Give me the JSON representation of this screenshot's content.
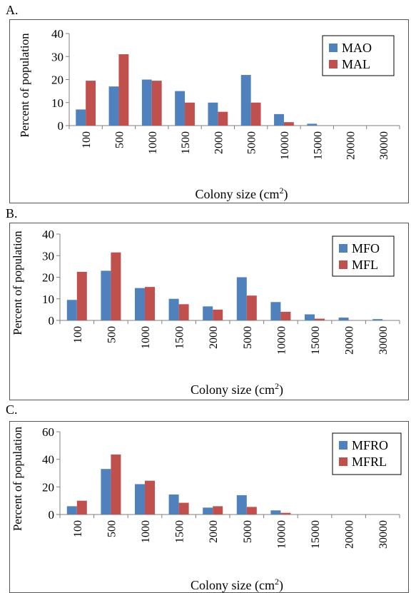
{
  "colors": {
    "original": "#4f81bd",
    "lab": "#c0504d",
    "axis": "#7f7f7f"
  },
  "panels": [
    {
      "letter": "A."
    },
    {
      "letter": "B."
    },
    {
      "letter": "C."
    }
  ],
  "chart_data": [
    {
      "type": "bar",
      "categories": [
        "100",
        "500",
        "1000",
        "1500",
        "2000",
        "5000",
        "10000",
        "15000",
        "20000",
        "30000"
      ],
      "ylabel": "Percent of population",
      "xlabel": "Colony size (cm2)",
      "ylim": [
        0,
        40
      ],
      "yticks": [
        0,
        10,
        20,
        30,
        40
      ],
      "legend": "top-right",
      "series": [
        {
          "name": "MAO",
          "color": "#4f81bd",
          "values": [
            7,
            17,
            20,
            15,
            10,
            22,
            5,
            0.8,
            0,
            0
          ]
        },
        {
          "name": "MAL",
          "color": "#c0504d",
          "values": [
            19.5,
            31,
            19.5,
            10,
            6,
            10,
            1.5,
            0,
            0,
            0
          ]
        }
      ]
    },
    {
      "type": "bar",
      "categories": [
        "100",
        "500",
        "1000",
        "1500",
        "2000",
        "5000",
        "10000",
        "15000",
        "20000",
        "30000"
      ],
      "ylabel": "Percent of population",
      "xlabel": "Colony size (cm2)",
      "ylim": [
        0,
        40
      ],
      "yticks": [
        0,
        10,
        20,
        30,
        40
      ],
      "legend": "top-right",
      "series": [
        {
          "name": "MFO",
          "color": "#4f81bd",
          "values": [
            9.5,
            23,
            15,
            10,
            6.5,
            20,
            8.5,
            2.8,
            1.3,
            0.6
          ]
        },
        {
          "name": "MFL",
          "color": "#c0504d",
          "values": [
            22.5,
            31.5,
            15.5,
            7.5,
            5,
            11.5,
            4,
            0.8,
            0,
            0
          ]
        }
      ]
    },
    {
      "type": "bar",
      "categories": [
        "100",
        "500",
        "1000",
        "1500",
        "2000",
        "5000",
        "10000",
        "15000",
        "20000",
        "30000"
      ],
      "ylabel": "Percent of population",
      "xlabel": "Colony size (cm2)",
      "ylim": [
        0,
        60
      ],
      "yticks": [
        0,
        20,
        40,
        60
      ],
      "legend": "top-right",
      "series": [
        {
          "name": "MFRO",
          "color": "#4f81bd",
          "values": [
            6,
            33,
            22,
            14.5,
            5,
            14,
            3,
            0,
            0,
            0
          ]
        },
        {
          "name": "MFRL",
          "color": "#c0504d",
          "values": [
            10,
            43.5,
            24.5,
            8.5,
            6,
            5.5,
            1.2,
            0,
            0,
            0
          ]
        }
      ]
    }
  ]
}
